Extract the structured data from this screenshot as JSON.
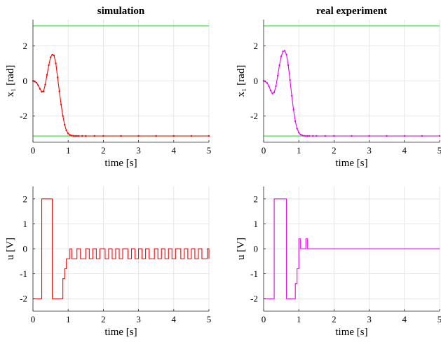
{
  "chart_data": [
    {
      "type": "line",
      "title": "simulation",
      "xlabel": "time [s]",
      "ylabel": "x₁ [rad]",
      "xlim": [
        0,
        5
      ],
      "ylim": [
        -3.5,
        3.5
      ],
      "xticks": [
        "0",
        "1",
        "2",
        "3",
        "4",
        "5"
      ],
      "yticks": [
        "2",
        "0",
        "-2"
      ],
      "grid": true,
      "reference_lines": [
        {
          "y": 3.1416,
          "color": "#33dd33"
        },
        {
          "y": -3.1416,
          "color": "#33dd33"
        }
      ],
      "series": [
        {
          "color": "#ff0000",
          "x": [
            0,
            0.05,
            0.1,
            0.15,
            0.2,
            0.25,
            0.3,
            0.35,
            0.4,
            0.45,
            0.5,
            0.55,
            0.6,
            0.65,
            0.7,
            0.75,
            0.8,
            0.85,
            0.9,
            0.95,
            1.0,
            1.05,
            1.1,
            1.15,
            1.2,
            1.25,
            1.3,
            1.4,
            1.5,
            1.75,
            2.0,
            2.5,
            3.0,
            3.5,
            4.0,
            4.5,
            5.0
          ],
          "values": [
            0.0,
            -0.03,
            -0.1,
            -0.25,
            -0.45,
            -0.62,
            -0.6,
            -0.2,
            0.35,
            0.9,
            1.35,
            1.5,
            1.45,
            1.0,
            0.2,
            -0.6,
            -1.35,
            -2.0,
            -2.5,
            -2.82,
            -3.0,
            -3.08,
            -3.12,
            -3.135,
            -3.14,
            -3.14,
            -3.14,
            -3.14,
            -3.14,
            -3.14,
            -3.14,
            -3.14,
            -3.14,
            -3.14,
            -3.14,
            -3.14,
            -3.14
          ]
        }
      ]
    },
    {
      "type": "line",
      "title": "real experiment",
      "xlabel": "time [s]",
      "ylabel": "x₁ [rad]",
      "xlim": [
        0,
        5
      ],
      "ylim": [
        -3.5,
        3.5
      ],
      "xticks": [
        "0",
        "1",
        "2",
        "3",
        "4",
        "5"
      ],
      "yticks": [
        "2",
        "0",
        "-2"
      ],
      "grid": true,
      "reference_lines": [
        {
          "y": 3.1416,
          "color": "#33dd33"
        },
        {
          "y": -3.1416,
          "color": "#33dd33"
        }
      ],
      "series": [
        {
          "color": "#ee00ee",
          "x": [
            0,
            0.05,
            0.1,
            0.15,
            0.2,
            0.25,
            0.3,
            0.35,
            0.4,
            0.45,
            0.5,
            0.55,
            0.6,
            0.65,
            0.7,
            0.75,
            0.8,
            0.85,
            0.9,
            0.95,
            1.0,
            1.05,
            1.1,
            1.15,
            1.2,
            1.25,
            1.3,
            1.4,
            1.5,
            1.75,
            2.0,
            2.5,
            3.0,
            3.5,
            4.0,
            4.5,
            5.0
          ],
          "values": [
            0.0,
            -0.03,
            -0.12,
            -0.3,
            -0.55,
            -0.72,
            -0.65,
            -0.3,
            0.3,
            0.9,
            1.4,
            1.68,
            1.72,
            1.5,
            0.9,
            0.05,
            -0.85,
            -1.65,
            -2.3,
            -2.72,
            -2.95,
            -3.06,
            -3.11,
            -3.13,
            -3.14,
            -3.14,
            -3.14,
            -3.14,
            -3.14,
            -3.14,
            -3.14,
            -3.14,
            -3.14,
            -3.14,
            -3.14,
            -3.14,
            -3.14
          ]
        }
      ]
    },
    {
      "type": "line",
      "title": "",
      "xlabel": "time [s]",
      "ylabel": "u [V]",
      "xlim": [
        0,
        5
      ],
      "ylim": [
        -2.5,
        2.5
      ],
      "xticks": [
        "0",
        "1",
        "2",
        "3",
        "4",
        "5"
      ],
      "yticks": [
        "2",
        "1",
        "0",
        "-1",
        "-2"
      ],
      "grid": true,
      "step": true,
      "series": [
        {
          "color": "#ff0000",
          "x": [
            0,
            0.25,
            0.55,
            0.85,
            0.9,
            0.95,
            1.05,
            1.1,
            1.25,
            1.35,
            1.5,
            1.6,
            1.7,
            1.8,
            1.9,
            2.05,
            2.15,
            2.25,
            2.35,
            2.45,
            2.55,
            2.7,
            2.8,
            2.9,
            3.0,
            3.1,
            3.2,
            3.3,
            3.45,
            3.55,
            3.65,
            3.75,
            3.85,
            3.95,
            4.05,
            4.2,
            4.3,
            4.4,
            4.5,
            4.6,
            4.7,
            4.8,
            4.95,
            5.0
          ],
          "values": [
            -2,
            2,
            -2,
            -1.2,
            -0.8,
            -0.4,
            0,
            -0.4,
            0,
            -0.4,
            0,
            -0.4,
            0,
            -0.4,
            0,
            -0.4,
            0,
            -0.4,
            0,
            -0.4,
            0,
            -0.4,
            0,
            -0.4,
            0,
            -0.4,
            0,
            -0.4,
            0,
            -0.4,
            0,
            -0.4,
            0,
            -0.4,
            0,
            -0.4,
            0,
            -0.4,
            0,
            -0.4,
            0,
            -0.4,
            0,
            -0.4
          ]
        }
      ]
    },
    {
      "type": "line",
      "title": "",
      "xlabel": "time [s]",
      "ylabel": "u [V]",
      "xlim": [
        0,
        5
      ],
      "ylim": [
        -2.5,
        2.5
      ],
      "xticks": [
        "0",
        "1",
        "2",
        "3",
        "4",
        "5"
      ],
      "yticks": [
        "2",
        "1",
        "0",
        "-1",
        "-2"
      ],
      "grid": true,
      "step": true,
      "series": [
        {
          "color": "#ee00ee",
          "x": [
            0,
            0.3,
            0.65,
            0.9,
            0.95,
            1.0,
            1.05,
            1.1,
            1.2,
            1.25,
            1.3,
            5.0
          ],
          "values": [
            -2,
            2,
            -2,
            -1.4,
            -0.8,
            0.4,
            0,
            0,
            0.4,
            0,
            0,
            0
          ]
        }
      ]
    }
  ]
}
